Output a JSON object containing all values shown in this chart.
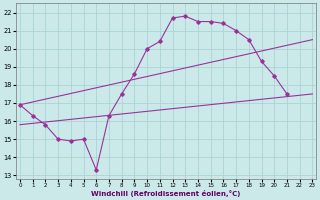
{
  "xlabel": "Windchill (Refroidissement éolien,°C)",
  "background_color": "#cce9e9",
  "grid_color": "#aad4d4",
  "line_color": "#993399",
  "x_ticks": [
    0,
    1,
    2,
    3,
    4,
    5,
    6,
    7,
    8,
    9,
    10,
    11,
    12,
    13,
    14,
    15,
    16,
    17,
    18,
    19,
    20,
    21,
    22,
    23
  ],
  "y_ticks": [
    13,
    14,
    15,
    16,
    17,
    18,
    19,
    20,
    21,
    22
  ],
  "ylim": [
    12.8,
    22.5
  ],
  "xlim": [
    -0.3,
    23.3
  ],
  "line1_x": [
    0,
    1,
    2,
    3,
    4,
    5,
    6,
    7,
    8,
    9,
    10,
    11,
    12,
    13,
    14,
    15,
    16,
    17,
    18,
    19,
    20,
    21
  ],
  "line1_y": [
    16.9,
    16.3,
    15.8,
    15.0,
    14.9,
    15.0,
    13.3,
    16.3,
    17.5,
    18.6,
    20.0,
    20.4,
    21.7,
    21.8,
    21.5,
    21.5,
    21.4,
    21.0,
    20.5,
    19.3,
    18.5,
    17.5
  ],
  "line2_x": [
    0,
    23
  ],
  "line2_y": [
    15.8,
    17.5
  ],
  "line3_x": [
    0,
    23
  ],
  "line3_y": [
    16.9,
    20.5
  ]
}
